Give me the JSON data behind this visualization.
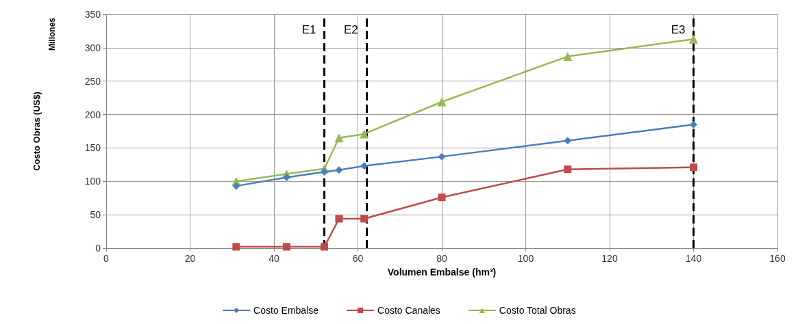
{
  "chart_data": {
    "type": "line",
    "xlabel": "Volumen Embalse (hm³)",
    "ylabel": "Costo Obras (US$)",
    "annotations": [
      "Millones"
    ],
    "xlim": [
      0,
      160
    ],
    "xticks": [
      0,
      20,
      40,
      60,
      80,
      100,
      120,
      140,
      160
    ],
    "ylim": [
      0,
      350
    ],
    "yticks": [
      0,
      50,
      100,
      150,
      200,
      250,
      300,
      350
    ],
    "grid": true,
    "legend": "bottom",
    "line_style": "solid",
    "series": [
      {
        "name": "Costo Embalse",
        "color": "#4a7ebb",
        "marker": "diamond",
        "x": [
          31,
          43,
          52,
          55.5,
          61.5,
          80,
          110,
          140
        ],
        "values": [
          93,
          106,
          114,
          117,
          123,
          137,
          161,
          185
        ]
      },
      {
        "name": "Costo Canales",
        "color": "#be4b48",
        "marker": "square",
        "x": [
          31,
          43,
          52,
          55.5,
          61.5,
          80,
          110,
          140
        ],
        "values": [
          2,
          2,
          2,
          44,
          44,
          76,
          118,
          121
        ]
      },
      {
        "name": "Costo Total Obras",
        "color": "#98b954",
        "marker": "triangle",
        "x": [
          31,
          43,
          52,
          55.5,
          61.5,
          80,
          110,
          140
        ],
        "values": [
          100,
          111,
          119,
          165,
          171,
          219,
          287,
          313
        ]
      }
    ],
    "ref_lines": [
      {
        "axis": "x",
        "value": 52,
        "label": "E1",
        "color": "#000000",
        "line_style": "dashed"
      },
      {
        "axis": "x",
        "value": 62,
        "label": "E2",
        "color": "#000000",
        "line_style": "dashed"
      },
      {
        "axis": "x",
        "value": 140,
        "label": "E3",
        "color": "#000000",
        "line_style": "dashed"
      }
    ]
  }
}
